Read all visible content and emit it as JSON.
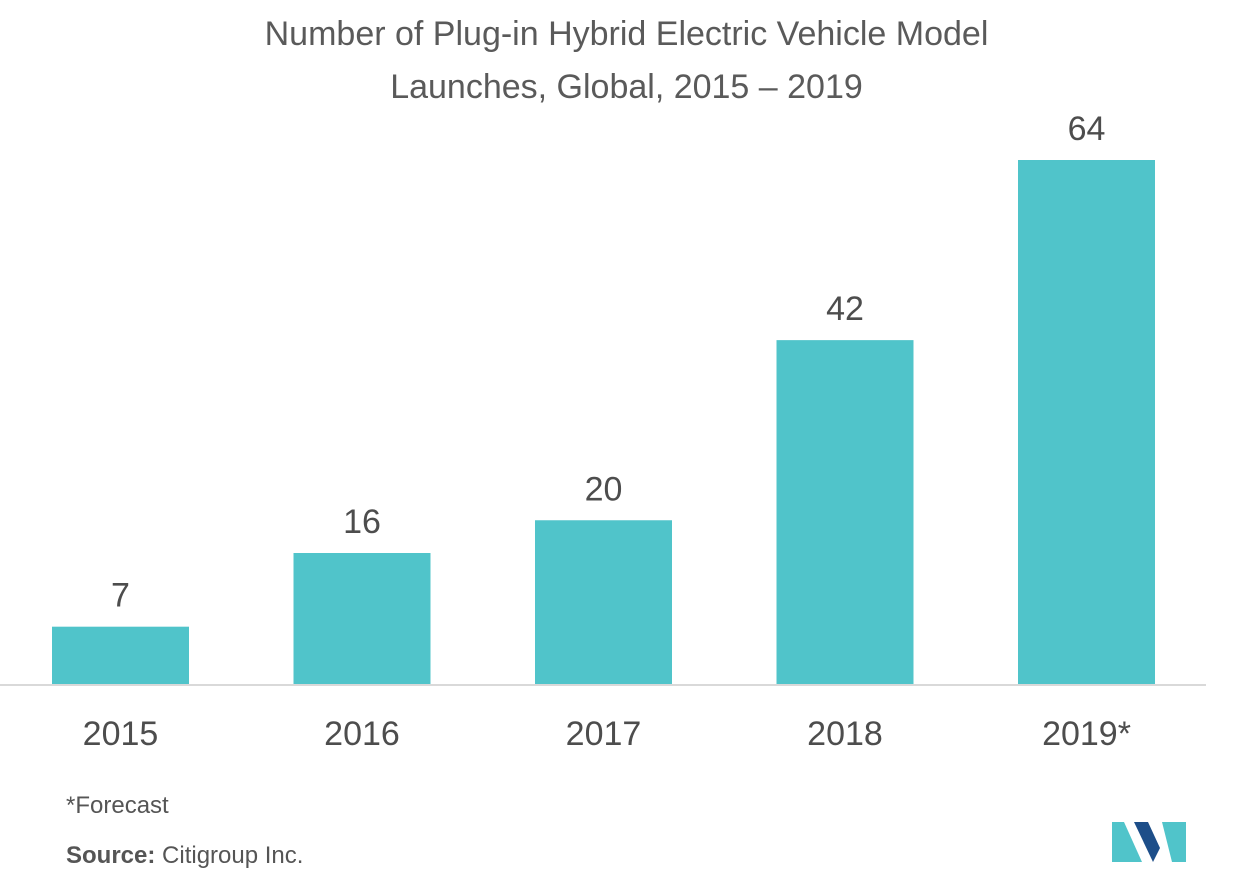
{
  "chart_data": {
    "type": "bar",
    "title_line1": "Number of Plug-in Hybrid Electric Vehicle Model",
    "title_line2": "Launches, Global, 2015 – 2019",
    "categories": [
      "2015",
      "2016",
      "2017",
      "2018",
      "2019*"
    ],
    "values": [
      7,
      16,
      20,
      42,
      64
    ],
    "data_labels": [
      "7",
      "16",
      "20",
      "42",
      "64"
    ],
    "xlabel": "",
    "ylabel": "",
    "ylim": [
      0,
      64
    ],
    "grid": false,
    "bar_color": "#50c4ca",
    "axis_color": "#d9d9d9"
  },
  "footnote": "*Forecast",
  "source": {
    "label": "Source:",
    "text": "Citigroup Inc."
  },
  "logo": {
    "icon": "company-logo-icon",
    "colors": [
      "#1d4e89",
      "#50c4ca"
    ]
  }
}
